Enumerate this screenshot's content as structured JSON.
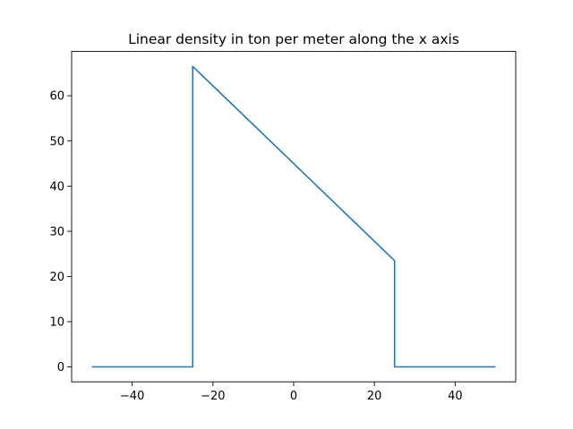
{
  "chart_data": {
    "type": "line",
    "title": "Linear density in ton per meter along the x axis",
    "xlabel": "",
    "ylabel": "",
    "xlim": [
      -55,
      55
    ],
    "ylim": [
      -3.3,
      69.8
    ],
    "grid": false,
    "xticks": [
      -40,
      -20,
      0,
      20,
      40
    ],
    "yticks": [
      0,
      10,
      20,
      30,
      40,
      50,
      60
    ],
    "xtick_labels": [
      "−40",
      "−20",
      "0",
      "20",
      "40"
    ],
    "ytick_labels": [
      "0",
      "10",
      "20",
      "30",
      "40",
      "50",
      "60"
    ],
    "series": [
      {
        "color": "#1f77b4",
        "x": [
          -50,
          -25,
          -25,
          25,
          25,
          50
        ],
        "y": [
          0,
          0,
          66.5,
          23.5,
          0,
          0
        ]
      }
    ]
  }
}
